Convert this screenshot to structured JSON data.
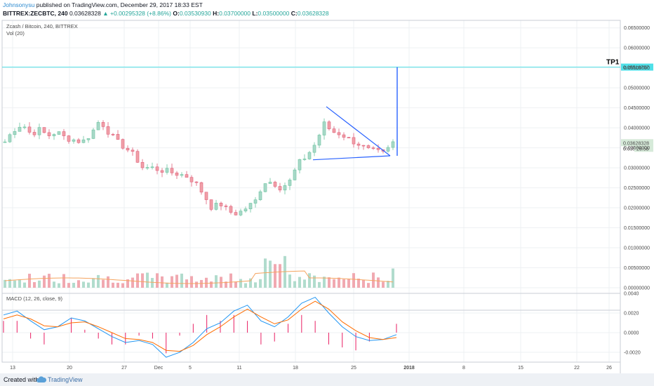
{
  "header": {
    "author": "Johnsonysu",
    "published": " published on TradingView.com, December 29, 2017 18:33 EST",
    "symbol": "BITTREX:ZECBTC, 240",
    "last": "0.03628328",
    "change": "▲ +0.00295328 (+8.86%)",
    "o_label": "O:",
    "o_value": "0.03530930",
    "h_label": "H:",
    "h_value": "0.03700000",
    "l_label": "L:",
    "l_value": "0.03500000",
    "c_label": "C:",
    "c_value": "0.03628328"
  },
  "colors": {
    "bull": "#a8d8c8",
    "bear": "#f0a0a8",
    "bull_edge": "#6cc4a0",
    "bear_edge": "#e0607a",
    "volume_ma": "#f5a45f",
    "tp_line": "#4fe0e8",
    "trend": "#2962ff",
    "macd": "#2196f3",
    "signal": "#ff6d00",
    "hist_pos": "#e91e63",
    "hist_neg": "#e91e63"
  },
  "chart_data": [
    {
      "type": "candlestick",
      "title": "Zcash / Bitcoin, 240, BITTREX",
      "indicator_label": "Vol (20)",
      "ylim": [
        0.0,
        0.066
      ],
      "y_ticks": [
        "0.06500000",
        "0.06000000",
        "0.05500000",
        "0.05000000",
        "0.04500000",
        "0.04000000",
        "0.03500000",
        "0.03000000",
        "0.02500000",
        "0.02000000",
        "0.01500000",
        "0.01000000",
        "0.00500000",
        "0.00000000"
      ],
      "x_ticks": [
        "13",
        "20",
        "27",
        "Dec",
        "5",
        "11",
        "18",
        "25",
        "2018",
        "8",
        "15",
        "22",
        "26"
      ],
      "price_path": [
        [
          "13",
          0.0365
        ],
        [
          "14",
          0.0395
        ],
        [
          "15",
          0.041
        ],
        [
          "16",
          0.0385
        ],
        [
          "17",
          0.0395
        ],
        [
          "18",
          0.038
        ],
        [
          "20",
          0.039
        ],
        [
          "21",
          0.0375
        ],
        [
          "22",
          0.037
        ],
        [
          "23",
          0.0365
        ],
        [
          "24",
          0.0385
        ],
        [
          "25",
          0.042
        ],
        [
          "26",
          0.039
        ],
        [
          "27",
          0.0365
        ],
        [
          "28",
          0.035
        ],
        [
          "29",
          0.033
        ],
        [
          "30",
          0.03
        ],
        [
          "Dec 1",
          0.03
        ],
        [
          "2",
          0.0295
        ],
        [
          "3",
          0.029
        ],
        [
          "4",
          0.0285
        ],
        [
          "5",
          0.028
        ],
        [
          "6",
          0.0265
        ],
        [
          "7",
          0.0235
        ],
        [
          "8",
          0.02
        ],
        [
          "9",
          0.021
        ],
        [
          "10",
          0.019
        ],
        [
          "11",
          0.0185
        ],
        [
          "12",
          0.02
        ],
        [
          "13",
          0.0215
        ],
        [
          "14",
          0.0265
        ],
        [
          "15",
          0.0265
        ],
        [
          "16",
          0.025
        ],
        [
          "17",
          0.0265
        ],
        [
          "18",
          0.031
        ],
        [
          "19",
          0.033
        ],
        [
          "20",
          0.036
        ],
        [
          "21",
          0.041
        ],
        [
          "22",
          0.039
        ],
        [
          "23",
          0.0385
        ],
        [
          "24",
          0.037
        ],
        [
          "25",
          0.036
        ],
        [
          "26",
          0.0345
        ],
        [
          "27",
          0.034
        ],
        [
          "28",
          0.0335
        ],
        [
          "29",
          0.0363
        ]
      ],
      "annotations": [
        {
          "text": "TP1",
          "value": "0.05518757"
        },
        {
          "text": "0.03628328"
        },
        {
          "text": "0.035"
        },
        {
          "text": "26:58"
        }
      ]
    },
    {
      "type": "line",
      "title": "MACD (12, 26, close, 9)",
      "ylim": [
        -0.003,
        0.004
      ],
      "y_ticks": [
        "0.0040",
        "0.0020",
        "0.0000",
        "-0.0020"
      ],
      "series": [
        {
          "values": [
            0.0018,
            0.0022,
            0.0012,
            0.0003,
            0.0006,
            0.0015,
            0.0012,
            0.0004,
            -0.0004,
            -0.001,
            -0.0008,
            -0.0012,
            -0.0025,
            -0.002,
            -0.001,
            0.0004,
            0.001,
            0.0022,
            0.0028,
            0.0012,
            0.0006,
            0.0016,
            0.003,
            0.0036,
            0.002,
            0.0006,
            -0.0004,
            -0.0008,
            -0.0007,
            -0.0002
          ]
        },
        {
          "values": [
            0.0014,
            0.0018,
            0.0014,
            0.0007,
            0.0006,
            0.001,
            0.0011,
            0.0006,
            0.0,
            -0.0006,
            -0.0007,
            -0.001,
            -0.0018,
            -0.0019,
            -0.0013,
            -0.0002,
            0.0006,
            0.0016,
            0.0024,
            0.0016,
            0.0009,
            0.0013,
            0.0024,
            0.0032,
            0.0024,
            0.0011,
            0.0002,
            -0.0005,
            -0.0007,
            -0.0005
          ]
        }
      ]
    }
  ],
  "footer": {
    "created_with": "Created with",
    "brand": "TradingView"
  }
}
